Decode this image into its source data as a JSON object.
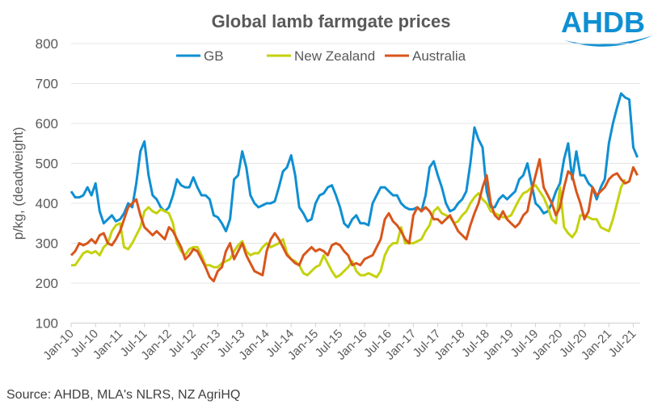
{
  "chart_data": {
    "type": "line",
    "title": "Global lamb farmgate prices",
    "ylabel": "p/kg, (deadweight)",
    "xlabel": "",
    "ylim": [
      100,
      800
    ],
    "yticks": [
      100,
      200,
      300,
      400,
      500,
      600,
      700,
      800
    ],
    "xlim": [
      "2010-01",
      "2021-08"
    ],
    "xticks": [
      "Jan-10",
      "Jul-10",
      "Jan-11",
      "Jul-11",
      "Jan-12",
      "Jul-12",
      "Jan-13",
      "Jul-13",
      "Jan-14",
      "Jul-14",
      "Jan-15",
      "Jul-15",
      "Jan-16",
      "Jul-16",
      "Jan-17",
      "Jul-17",
      "Jan-18",
      "Jul-18",
      "Jan-19",
      "Jul-19",
      "Jan-20",
      "Jul-20",
      "Jan-21",
      "Jul-21"
    ],
    "x_start": "2010-01",
    "x_step": "monthly",
    "grid": "horizontal",
    "legend_position": "top",
    "series": [
      {
        "name": "GB",
        "color": "#0f8fd2",
        "values": [
          430,
          415,
          415,
          420,
          440,
          420,
          450,
          380,
          350,
          360,
          370,
          355,
          360,
          375,
          400,
          390,
          450,
          530,
          555,
          470,
          420,
          410,
          390,
          380,
          390,
          420,
          460,
          445,
          440,
          440,
          465,
          440,
          420,
          420,
          410,
          370,
          365,
          350,
          330,
          360,
          460,
          470,
          530,
          490,
          420,
          400,
          390,
          395,
          400,
          400,
          405,
          440,
          480,
          490,
          520,
          470,
          390,
          375,
          355,
          360,
          400,
          420,
          425,
          440,
          445,
          420,
          390,
          350,
          340,
          360,
          370,
          350,
          350,
          345,
          400,
          420,
          440,
          440,
          430,
          420,
          420,
          400,
          390,
          385,
          385,
          390,
          380,
          420,
          490,
          505,
          470,
          440,
          400,
          380,
          385,
          400,
          410,
          430,
          500,
          590,
          560,
          540,
          430,
          390,
          390,
          410,
          420,
          410,
          420,
          430,
          460,
          470,
          500,
          450,
          400,
          390,
          375,
          380,
          400,
          430,
          450,
          510,
          550,
          460,
          530,
          470,
          470,
          450,
          440,
          410,
          440,
          460,
          550,
          600,
          640,
          675,
          665,
          660,
          540,
          515
        ]
      },
      {
        "name": "New Zealand",
        "color": "#c4d20e",
        "values": [
          245,
          245,
          260,
          275,
          280,
          275,
          280,
          270,
          290,
          300,
          330,
          345,
          350,
          290,
          285,
          300,
          320,
          340,
          380,
          390,
          380,
          375,
          385,
          380,
          375,
          350,
          300,
          280,
          270,
          285,
          290,
          290,
          270,
          245,
          245,
          240,
          240,
          250,
          255,
          260,
          280,
          295,
          305,
          280,
          270,
          275,
          275,
          290,
          300,
          290,
          295,
          300,
          310,
          275,
          260,
          255,
          245,
          225,
          220,
          230,
          240,
          245,
          270,
          250,
          230,
          215,
          220,
          230,
          240,
          255,
          230,
          220,
          220,
          225,
          220,
          215,
          230,
          270,
          290,
          300,
          300,
          340,
          300,
          300,
          300,
          305,
          310,
          330,
          345,
          380,
          390,
          375,
          370,
          365,
          350,
          355,
          370,
          380,
          400,
          415,
          425,
          410,
          400,
          380,
          375,
          370,
          365,
          365,
          370,
          390,
          410,
          425,
          430,
          440,
          445,
          430,
          415,
          390,
          360,
          350,
          440,
          340,
          325,
          315,
          330,
          370,
          370,
          365,
          360,
          360,
          340,
          335,
          330,
          360,
          400,
          440,
          460
        ]
      },
      {
        "name": "Australia",
        "color": "#d8561c",
        "values": [
          270,
          280,
          300,
          295,
          300,
          310,
          300,
          320,
          325,
          300,
          295,
          310,
          330,
          360,
          390,
          400,
          410,
          370,
          340,
          330,
          320,
          330,
          320,
          310,
          340,
          330,
          310,
          290,
          260,
          270,
          285,
          280,
          260,
          240,
          215,
          205,
          230,
          240,
          280,
          300,
          260,
          280,
          300,
          270,
          250,
          230,
          225,
          220,
          280,
          310,
          325,
          310,
          290,
          270,
          260,
          250,
          245,
          270,
          280,
          290,
          280,
          285,
          280,
          270,
          295,
          300,
          295,
          280,
          270,
          245,
          250,
          245,
          260,
          265,
          270,
          290,
          310,
          360,
          375,
          355,
          345,
          330,
          310,
          300,
          370,
          390,
          380,
          390,
          380,
          360,
          360,
          350,
          360,
          370,
          350,
          330,
          320,
          310,
          345,
          375,
          400,
          440,
          470,
          400,
          370,
          360,
          380,
          360,
          350,
          340,
          350,
          370,
          380,
          430,
          470,
          510,
          440,
          420,
          400,
          370,
          390,
          440,
          480,
          470,
          430,
          400,
          360,
          380,
          440,
          420,
          430,
          440,
          460,
          470,
          475,
          460,
          450,
          455,
          490,
          470
        ]
      }
    ]
  },
  "logo": {
    "text": "AHDB",
    "color": "#0f8fd2"
  },
  "source": "Source: AHDB, MLA's NLRS, NZ AgriHQ"
}
